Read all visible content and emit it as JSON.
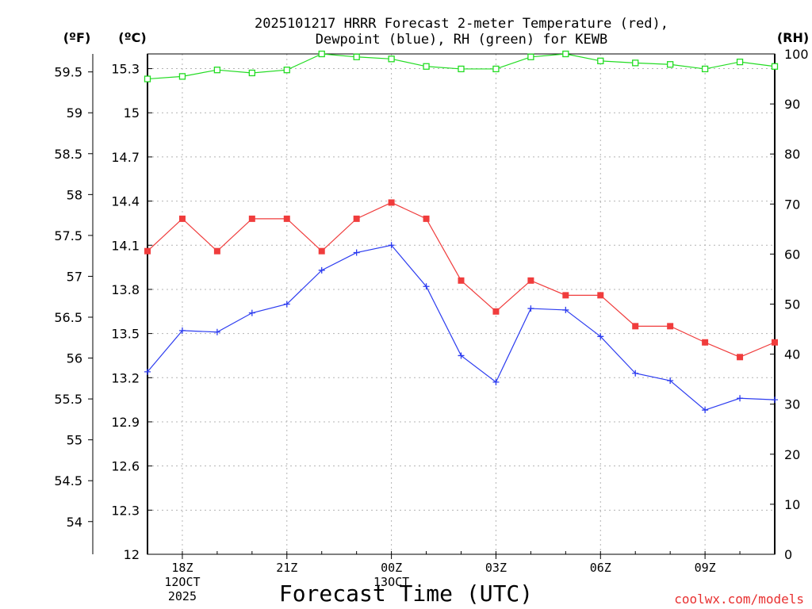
{
  "chart_data": {
    "type": "line",
    "title": "2025101217 HRRR Forecast 2-meter Temperature (red),",
    "subtitle": "Dewpoint (blue), RH (green) for KEWB",
    "xlabel": "Forecast Time (UTC)",
    "credit": "coolwx.com/models",
    "units": {
      "fahrenheit": "(ºF)",
      "celsius": "(ºC)",
      "rh": "(RH)"
    },
    "x": [
      0,
      1,
      2,
      3,
      4,
      5,
      6,
      7,
      8,
      9,
      10,
      11,
      12,
      13,
      14,
      15,
      16,
      17,
      18
    ],
    "x_ticks": [
      {
        "x": 1,
        "lines": [
          "18Z",
          "12OCT",
          "2025"
        ]
      },
      {
        "x": 4,
        "lines": [
          "21Z"
        ]
      },
      {
        "x": 7,
        "lines": [
          "00Z",
          "13OCT"
        ]
      },
      {
        "x": 10,
        "lines": [
          "03Z"
        ]
      },
      {
        "x": 13,
        "lines": [
          "06Z"
        ]
      },
      {
        "x": 16,
        "lines": [
          "09Z"
        ]
      }
    ],
    "xlim": [
      0,
      18
    ],
    "celsius_axis": {
      "range": [
        12,
        15.4
      ],
      "ticks": [
        "12",
        "12.3",
        "12.6",
        "12.9",
        "13.2",
        "13.5",
        "13.8",
        "14.1",
        "14.4",
        "14.7",
        "15",
        "15.3"
      ]
    },
    "fahrenheit_axis": {
      "ticks": [
        "54",
        "54.5",
        "55",
        "55.5",
        "56",
        "56.5",
        "57",
        "57.5",
        "58",
        "58.5",
        "59",
        "59.5"
      ]
    },
    "rh_axis": {
      "range": [
        0,
        100
      ],
      "ticks": [
        "0",
        "10",
        "20",
        "30",
        "40",
        "50",
        "60",
        "70",
        "80",
        "90",
        "100"
      ]
    },
    "series": [
      {
        "name": "Temperature",
        "unit": "C",
        "color": "#f03c3c",
        "marker": "filled-square",
        "values": [
          14.06,
          14.28,
          14.06,
          14.28,
          14.28,
          14.06,
          14.28,
          14.39,
          14.28,
          13.86,
          13.65,
          13.86,
          13.76,
          13.76,
          13.55,
          13.55,
          13.44,
          13.34,
          13.44
        ]
      },
      {
        "name": "Dewpoint",
        "unit": "C",
        "color": "#2c3cf0",
        "marker": "plus",
        "values": [
          13.24,
          13.52,
          13.51,
          13.64,
          13.7,
          13.93,
          14.05,
          14.1,
          13.82,
          13.35,
          13.17,
          13.67,
          13.66,
          13.48,
          13.23,
          13.18,
          12.98,
          13.06,
          13.05
        ]
      },
      {
        "name": "RH",
        "unit": "%",
        "color": "#22dc22",
        "marker": "open-square",
        "values": [
          95.0,
          95.5,
          96.8,
          96.2,
          96.8,
          100,
          99.4,
          99.0,
          97.5,
          97.0,
          97.0,
          99.4,
          100,
          98.6,
          98.2,
          97.9,
          97.0,
          98.4,
          97.5
        ]
      }
    ]
  }
}
